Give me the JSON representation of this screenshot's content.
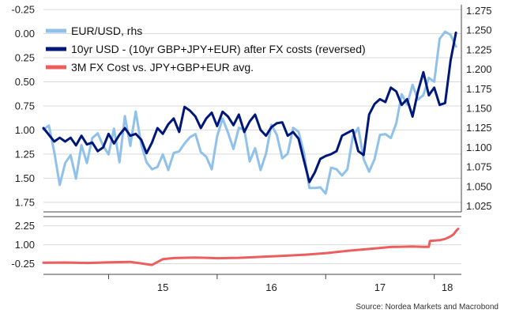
{
  "chart_data": [
    {
      "type": "line",
      "panel": "top",
      "x_range": [
        2014.4,
        2018.25
      ],
      "xticks": [
        {
          "label": "15",
          "x": 2015.0
        },
        {
          "label": "16",
          "x": 2016.0
        },
        {
          "label": "17",
          "x": 2017.0
        },
        {
          "label": "18",
          "x": 2018.0
        }
      ],
      "y_left": {
        "range": [
          -0.3,
          1.85
        ],
        "inverted": true,
        "ticks": [
          "-0.25",
          "0.00",
          "0.25",
          "0.50",
          "0.75",
          "1.00",
          "1.25",
          "1.50",
          "1.75"
        ]
      },
      "y_right": {
        "range": [
          1.0175,
          1.2825
        ],
        "ticks": [
          "1.275",
          "1.250",
          "1.225",
          "1.200",
          "1.175",
          "1.150",
          "1.125",
          "1.100",
          "1.075",
          "1.050",
          "1.025"
        ]
      },
      "grid": true,
      "legend_position": "top-left",
      "series": [
        {
          "name": "EUR/USD, rhs",
          "color": "#8fc1ea",
          "axis": "right",
          "x": [
            2014.4,
            2014.45,
            2014.5,
            2014.55,
            2014.6,
            2014.65,
            2014.7,
            2014.75,
            2014.8,
            2014.85,
            2014.9,
            2014.95,
            2015.0,
            2015.05,
            2015.1,
            2015.15,
            2015.2,
            2015.25,
            2015.3,
            2015.35,
            2015.4,
            2015.45,
            2015.5,
            2015.55,
            2015.6,
            2015.65,
            2015.7,
            2015.75,
            2015.8,
            2015.85,
            2015.9,
            2015.95,
            2016.0,
            2016.05,
            2016.1,
            2016.15,
            2016.2,
            2016.25,
            2016.3,
            2016.35,
            2016.4,
            2016.45,
            2016.5,
            2016.55,
            2016.6,
            2016.65,
            2016.7,
            2016.75,
            2016.8,
            2016.85,
            2016.9,
            2016.95,
            2017.0,
            2017.05,
            2017.1,
            2017.15,
            2017.2,
            2017.25,
            2017.3,
            2017.35,
            2017.4,
            2017.45,
            2017.5,
            2017.55,
            2017.6,
            2017.65,
            2017.7,
            2017.75,
            2017.8,
            2017.85,
            2017.9,
            2017.95,
            2018.0,
            2018.05,
            2018.1,
            2018.15,
            2018.2
          ],
          "y": [
            1.123,
            1.128,
            1.094,
            1.052,
            1.08,
            1.09,
            1.06,
            1.103,
            1.08,
            1.112,
            1.118,
            1.102,
            1.091,
            1.124,
            1.081,
            1.14,
            1.102,
            1.146,
            1.104,
            1.081,
            1.072,
            1.075,
            1.091,
            1.071,
            1.093,
            1.095,
            1.105,
            1.113,
            1.117,
            1.094,
            1.088,
            1.072,
            1.114,
            1.137,
            1.119,
            1.098,
            1.125,
            1.123,
            1.082,
            1.099,
            1.071,
            1.092,
            1.129,
            1.116,
            1.086,
            1.092,
            1.125,
            1.12,
            1.093,
            1.048,
            1.048,
            1.049,
            1.041,
            1.074,
            1.072,
            1.064,
            1.072,
            1.114,
            1.125,
            1.085,
            1.069,
            1.085,
            1.116,
            1.117,
            1.112,
            1.131,
            1.168,
            1.155,
            1.18,
            1.161,
            1.167,
            1.189,
            1.184,
            1.239,
            1.248,
            1.244,
            1.229
          ]
        },
        {
          "name": "10yr USD - (10yr GBP+JPY+EUR) after FX costs (reversed)",
          "color": "#00177a",
          "axis": "left",
          "x": [
            2014.4,
            2014.45,
            2014.5,
            2014.55,
            2014.6,
            2014.65,
            2014.7,
            2014.75,
            2014.8,
            2014.85,
            2014.9,
            2014.95,
            2015.0,
            2015.05,
            2015.1,
            2015.15,
            2015.2,
            2015.25,
            2015.3,
            2015.35,
            2015.4,
            2015.45,
            2015.5,
            2015.55,
            2015.6,
            2015.65,
            2015.7,
            2015.75,
            2015.8,
            2015.85,
            2015.9,
            2015.95,
            2016.0,
            2016.05,
            2016.1,
            2016.15,
            2016.2,
            2016.25,
            2016.3,
            2016.35,
            2016.4,
            2016.45,
            2016.5,
            2016.55,
            2016.6,
            2016.65,
            2016.7,
            2016.75,
            2016.8,
            2016.85,
            2016.9,
            2016.95,
            2017.0,
            2017.05,
            2017.1,
            2017.15,
            2017.2,
            2017.25,
            2017.3,
            2017.35,
            2017.4,
            2017.45,
            2017.5,
            2017.55,
            2017.6,
            2017.65,
            2017.7,
            2017.75,
            2017.8,
            2017.85,
            2017.9,
            2017.95,
            2018.0,
            2018.05,
            2018.1,
            2018.15,
            2018.2
          ],
          "y": [
            0.98,
            1.05,
            1.12,
            1.08,
            1.12,
            1.08,
            1.16,
            1.06,
            1.15,
            1.13,
            1.22,
            1.18,
            1.04,
            1.14,
            1.05,
            0.98,
            1.06,
            1.04,
            1.1,
            1.24,
            1.13,
            0.98,
            1.04,
            0.94,
            0.88,
            1.02,
            0.76,
            0.8,
            0.86,
            0.98,
            0.88,
            0.82,
            0.96,
            0.81,
            0.86,
            0.95,
            0.84,
            1.02,
            0.91,
            0.84,
            1.0,
            1.06,
            0.97,
            0.93,
            0.92,
            1.06,
            1.02,
            1.09,
            1.32,
            1.54,
            1.44,
            1.3,
            1.27,
            1.25,
            1.22,
            1.06,
            1.03,
            1.0,
            1.22,
            1.26,
            0.84,
            0.73,
            0.68,
            0.71,
            0.56,
            0.6,
            0.74,
            0.68,
            0.86,
            0.6,
            0.4,
            0.64,
            0.56,
            0.74,
            0.72,
            0.28,
            -0.01
          ]
        }
      ]
    },
    {
      "type": "line",
      "panel": "bottom",
      "x_range": [
        2014.4,
        2018.25
      ],
      "y": {
        "range": [
          -0.95,
          2.85
        ],
        "ticks": [
          "2.25",
          "1.00",
          "-0.25"
        ]
      },
      "grid": true,
      "series": [
        {
          "name": "3M FX Cost vs. JPY+GBP+EUR avg.",
          "color": "#ec5f5e",
          "axis": "left",
          "x": [
            2014.4,
            2014.6,
            2014.8,
            2015.0,
            2015.2,
            2015.4,
            2015.5,
            2015.6,
            2015.8,
            2016.0,
            2016.2,
            2016.4,
            2016.6,
            2016.8,
            2017.0,
            2017.2,
            2017.4,
            2017.6,
            2017.8,
            2017.9,
            2017.95,
            2017.96,
            2018.05,
            2018.1,
            2018.15,
            2018.18,
            2018.2,
            2018.22
          ],
          "y": [
            -0.18,
            -0.17,
            -0.2,
            -0.16,
            -0.13,
            -0.33,
            0.05,
            0.12,
            0.16,
            0.11,
            0.14,
            0.2,
            0.27,
            0.34,
            0.44,
            0.6,
            0.72,
            0.85,
            0.88,
            0.86,
            0.86,
            1.25,
            1.3,
            1.38,
            1.55,
            1.7,
            1.9,
            2.05
          ]
        }
      ]
    }
  ],
  "legend": [
    {
      "label": "EUR/USD, rhs",
      "color": "#8fc1ea"
    },
    {
      "label": "10yr USD - (10yr GBP+JPY+EUR) after FX costs (reversed)",
      "color": "#00177a"
    },
    {
      "label": "3M FX Cost vs. JPY+GBP+EUR avg.",
      "color": "#ec5f5e"
    }
  ],
  "source_text": "Source: Nordea Markets and Macrobond"
}
